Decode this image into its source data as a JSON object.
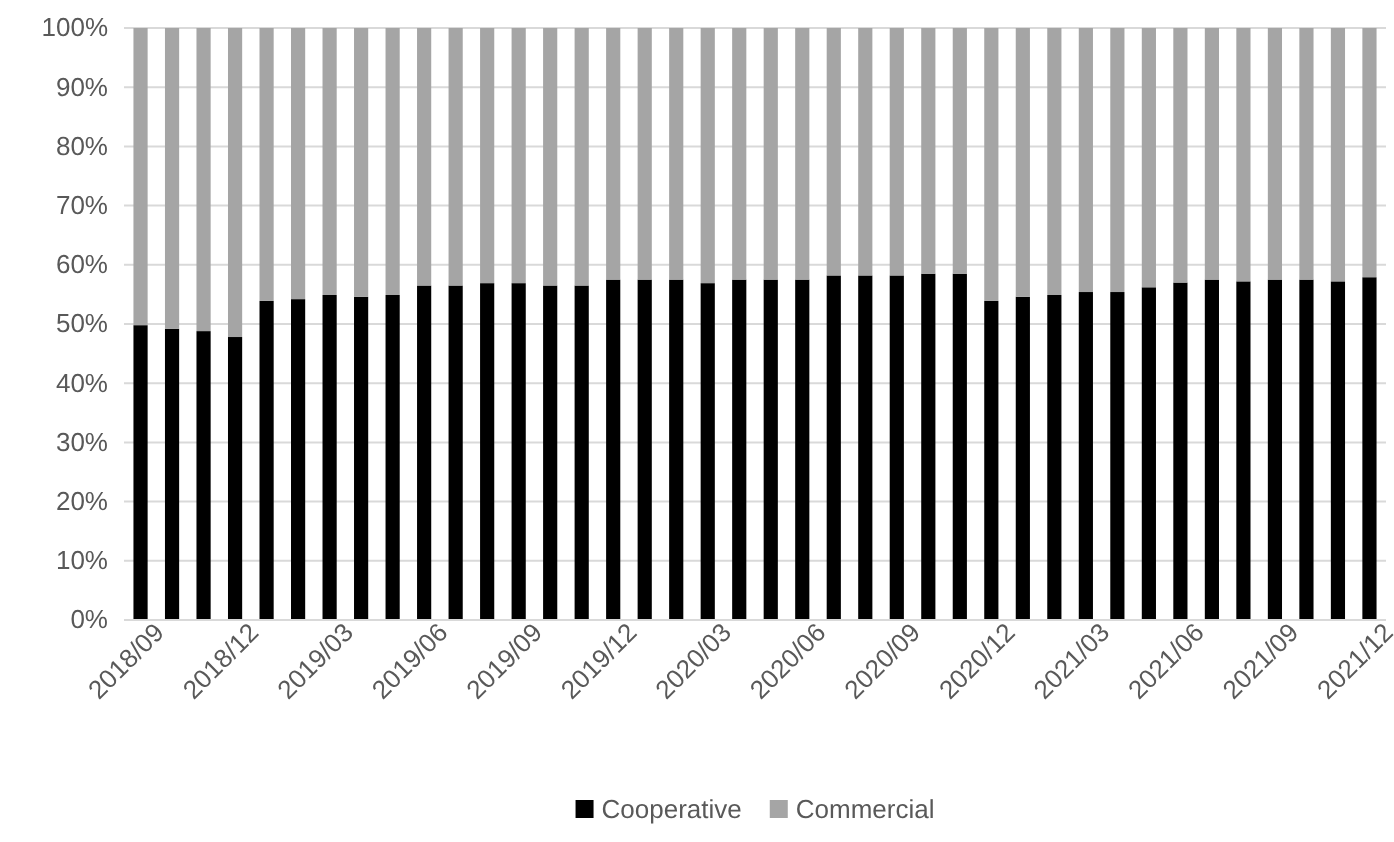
{
  "chart_data": {
    "type": "bar",
    "stacked": true,
    "categories": [
      "2018/09",
      null,
      null,
      "2018/12",
      null,
      null,
      "2019/03",
      null,
      null,
      "2019/06",
      null,
      null,
      "2019/09",
      null,
      null,
      "2019/12",
      null,
      null,
      "2020/03",
      null,
      null,
      "2020/06",
      null,
      null,
      "2020/09",
      null,
      null,
      "2020/12",
      null,
      null,
      "2021/03",
      null,
      null,
      "2021/06",
      null,
      null,
      "2021/09",
      null,
      null,
      "2021/12"
    ],
    "series": [
      {
        "name": "Cooperative",
        "color": "#000000",
        "values": [
          49.8,
          49.2,
          48.8,
          47.8,
          53.9,
          54.2,
          54.9,
          54.6,
          54.9,
          56.5,
          56.5,
          56.9,
          56.9,
          56.5,
          56.5,
          57.5,
          57.5,
          57.5,
          56.9,
          57.5,
          57.5,
          57.5,
          58.2,
          58.2,
          58.2,
          58.5,
          58.5,
          53.9,
          54.6,
          54.9,
          55.4,
          55.4,
          56.2,
          57.0,
          57.5,
          57.2,
          57.5,
          57.5,
          57.2,
          57.9
        ]
      },
      {
        "name": "Commercial",
        "color": "#a5a5a5",
        "values": [
          50.2,
          50.8,
          51.2,
          52.2,
          46.1,
          45.8,
          45.1,
          45.4,
          45.1,
          43.5,
          43.5,
          43.1,
          43.1,
          43.5,
          43.5,
          42.5,
          42.5,
          42.5,
          43.1,
          42.5,
          42.5,
          42.5,
          41.8,
          41.8,
          41.8,
          41.5,
          41.5,
          46.1,
          45.4,
          45.1,
          44.6,
          44.6,
          43.8,
          43.0,
          42.5,
          42.8,
          42.5,
          42.5,
          42.8,
          42.1
        ]
      }
    ],
    "ylim": [
      0,
      100
    ],
    "yticks": [
      {
        "value": 0,
        "label": "0%"
      },
      {
        "value": 10,
        "label": "10%"
      },
      {
        "value": 20,
        "label": "20%"
      },
      {
        "value": 30,
        "label": "30%"
      },
      {
        "value": 40,
        "label": "40%"
      },
      {
        "value": 50,
        "label": "50%"
      },
      {
        "value": 60,
        "label": "60%"
      },
      {
        "value": 70,
        "label": "70%"
      },
      {
        "value": 80,
        "label": "80%"
      },
      {
        "value": 90,
        "label": "90%"
      },
      {
        "value": 100,
        "label": "100%"
      }
    ],
    "grid": "y",
    "legend": "bottom"
  }
}
